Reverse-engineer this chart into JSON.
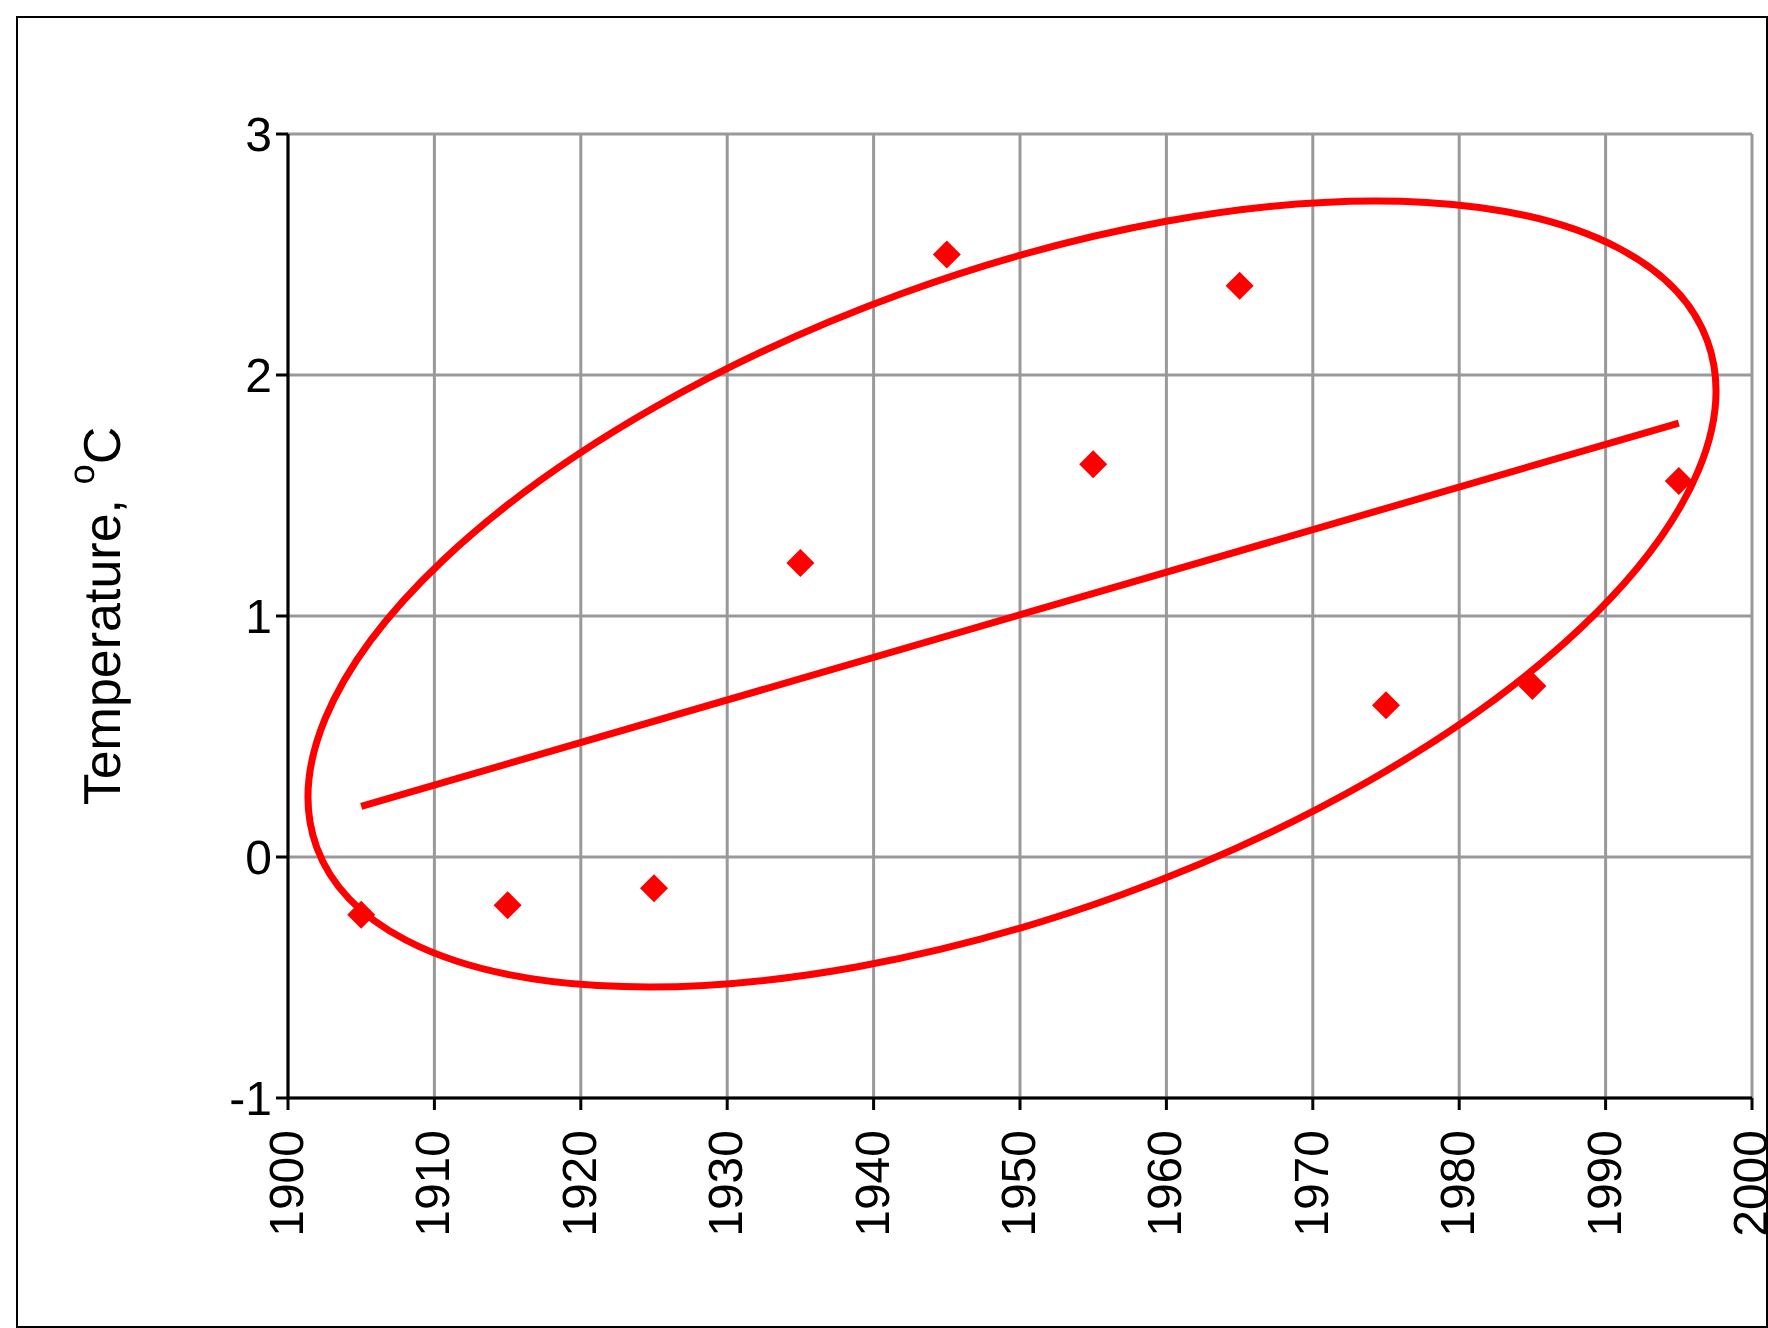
{
  "chart_data": {
    "type": "scatter",
    "ylabel": "Temperature, $^{o}$C",
    "x": [
      1905,
      1915,
      1925,
      1935,
      1945,
      1955,
      1965,
      1975,
      1985,
      1995
    ],
    "series": [
      {
        "color": "#ff0000",
        "marker": "diamond",
        "values": [
          -0.24,
          -0.2,
          -0.13,
          1.22,
          2.5,
          1.63,
          2.37,
          0.63,
          0.71,
          1.56
        ]
      },
      {
        "type": "line",
        "color": "#ff0000",
        "marker": "none",
        "x": [
          1905,
          1995
        ],
        "values": [
          0.21,
          1.8
        ]
      }
    ],
    "xlim": [
      1900,
      2000
    ],
    "xticks": [
      1900,
      1910,
      1920,
      1930,
      1940,
      1950,
      1960,
      1970,
      1980,
      1990,
      2000
    ],
    "ylim": [
      -1,
      3
    ],
    "yticks": [
      -1,
      0,
      1,
      2,
      3
    ],
    "grid": true
  }
}
